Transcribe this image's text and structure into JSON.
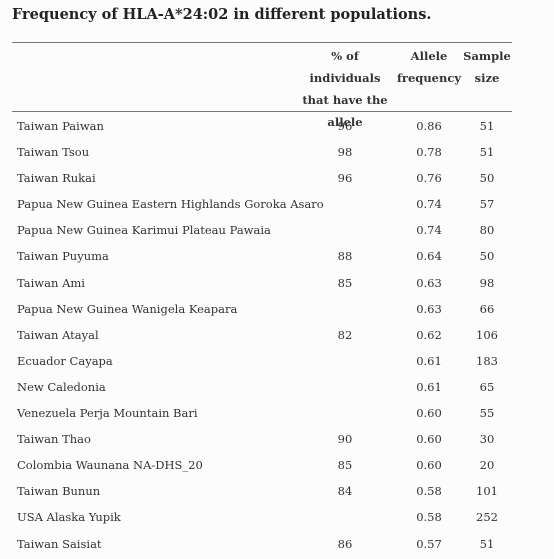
{
  "title": "Frequency of HLA-A*24:02 in different populations.",
  "columns": {
    "population": "",
    "pct_line1": "% of individuals",
    "pct_line2": "that have the",
    "pct_line3": "allele",
    "af_line1": "Allele",
    "af_line2": "frequency",
    "ss_line1": "Sample",
    "ss_line2": "size"
  },
  "rows": [
    {
      "population": "Taiwan Paiwan",
      "pct": "96",
      "allele_frequency": "0.86",
      "sample_size": "51"
    },
    {
      "population": "Taiwan Tsou",
      "pct": "98",
      "allele_frequency": "0.78",
      "sample_size": "51"
    },
    {
      "population": "Taiwan Rukai",
      "pct": "96",
      "allele_frequency": "0.76",
      "sample_size": "50"
    },
    {
      "population": "Papua New Guinea Eastern Highlands Goroka Asaro",
      "pct": "",
      "allele_frequency": "0.74",
      "sample_size": "57"
    },
    {
      "population": "Papua New Guinea Karimui Plateau Pawaia",
      "pct": "",
      "allele_frequency": "0.74",
      "sample_size": "80"
    },
    {
      "population": "Taiwan Puyuma",
      "pct": "88",
      "allele_frequency": "0.64",
      "sample_size": "50"
    },
    {
      "population": "Taiwan Ami",
      "pct": "85",
      "allele_frequency": "0.63",
      "sample_size": "98"
    },
    {
      "population": "Papua New Guinea Wanigela Keapara",
      "pct": "",
      "allele_frequency": "0.63",
      "sample_size": "66"
    },
    {
      "population": "Taiwan Atayal",
      "pct": "82",
      "allele_frequency": "0.62",
      "sample_size": "106"
    },
    {
      "population": "Ecuador Cayapa",
      "pct": "",
      "allele_frequency": "0.61",
      "sample_size": "183"
    },
    {
      "population": "New Caledonia",
      "pct": "",
      "allele_frequency": "0.61",
      "sample_size": "65"
    },
    {
      "population": "Venezuela Perja Mountain Bari",
      "pct": "",
      "allele_frequency": "0.60",
      "sample_size": "55"
    },
    {
      "population": "Taiwan Thao",
      "pct": "90",
      "allele_frequency": "0.60",
      "sample_size": "30"
    },
    {
      "population": "Colombia Waunana NA-DHS_20",
      "pct": "85",
      "allele_frequency": "0.60",
      "sample_size": "20"
    },
    {
      "population": "Taiwan Bunun",
      "pct": "84",
      "allele_frequency": "0.58",
      "sample_size": "101"
    },
    {
      "population": "USA Alaska Yupik",
      "pct": "",
      "allele_frequency": "0.58",
      "sample_size": "252"
    },
    {
      "population": "Taiwan Saisiat",
      "pct": "86",
      "allele_frequency": "0.57",
      "sample_size": "51"
    }
  ]
}
